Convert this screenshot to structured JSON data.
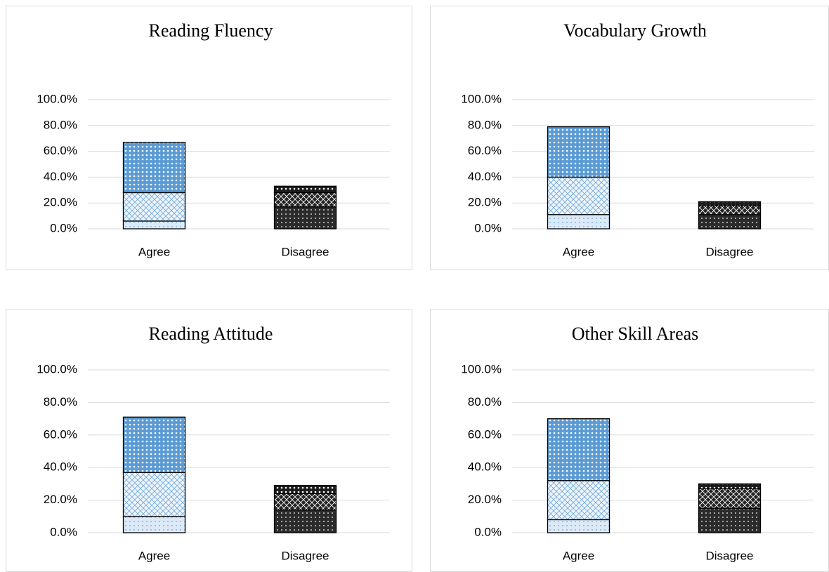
{
  "chart_data": [
    {
      "type": "bar",
      "stacked": true,
      "title": "Reading Fluency",
      "categories": [
        "Agree",
        "Disagree"
      ],
      "series": [
        {
          "colors": [
            "#dce9f7",
            "#2b2b2b"
          ],
          "values": [
            6,
            17
          ]
        },
        {
          "colors": [
            "#eef4fb",
            "#262626"
          ],
          "values": [
            22,
            11
          ]
        },
        {
          "colors": [
            "#5b9bd5",
            "#1a1a1a"
          ],
          "values": [
            39,
            5
          ]
        }
      ],
      "ylim": [
        0,
        100
      ],
      "yticks": [
        {
          "value": 0,
          "label": "0.0%"
        },
        {
          "value": 20,
          "label": "20.0%"
        },
        {
          "value": 40,
          "label": "40.0%"
        },
        {
          "value": 60,
          "label": "60.0%"
        },
        {
          "value": 80,
          "label": "80.0%"
        },
        {
          "value": 100,
          "label": "100.0%"
        }
      ],
      "grid": true
    },
    {
      "type": "bar",
      "stacked": true,
      "title": "Vocabulary Growth",
      "categories": [
        "Agree",
        "Disagree"
      ],
      "series": [
        {
          "colors": [
            "#dce9f7",
            "#2b2b2b"
          ],
          "values": [
            11,
            11
          ]
        },
        {
          "colors": [
            "#eef4fb",
            "#262626"
          ],
          "values": [
            29,
            7
          ]
        },
        {
          "colors": [
            "#5b9bd5",
            "#1a1a1a"
          ],
          "values": [
            39,
            3
          ]
        }
      ],
      "ylim": [
        0,
        100
      ],
      "yticks": [
        {
          "value": 0,
          "label": "0.0%"
        },
        {
          "value": 20,
          "label": "20.0%"
        },
        {
          "value": 40,
          "label": "40.0%"
        },
        {
          "value": 60,
          "label": "60.0%"
        },
        {
          "value": 80,
          "label": "80.0%"
        },
        {
          "value": 100,
          "label": "100.0%"
        }
      ],
      "grid": true
    },
    {
      "type": "bar",
      "stacked": true,
      "title": "Reading Attitude",
      "categories": [
        "Agree",
        "Disagree"
      ],
      "series": [
        {
          "colors": [
            "#dce9f7",
            "#2b2b2b"
          ],
          "values": [
            10,
            14
          ]
        },
        {
          "colors": [
            "#eef4fb",
            "#262626"
          ],
          "values": [
            27,
            10
          ]
        },
        {
          "colors": [
            "#5b9bd5",
            "#1a1a1a"
          ],
          "values": [
            34,
            5
          ]
        }
      ],
      "ylim": [
        0,
        100
      ],
      "yticks": [
        {
          "value": 0,
          "label": "0.0%"
        },
        {
          "value": 20,
          "label": "20.0%"
        },
        {
          "value": 40,
          "label": "40.0%"
        },
        {
          "value": 60,
          "label": "60.0%"
        },
        {
          "value": 80,
          "label": "80.0%"
        },
        {
          "value": 100,
          "label": "100.0%"
        }
      ],
      "grid": true
    },
    {
      "type": "bar",
      "stacked": true,
      "title": "Other Skill Areas",
      "categories": [
        "Agree",
        "Disagree"
      ],
      "series": [
        {
          "colors": [
            "#dce9f7",
            "#2b2b2b"
          ],
          "values": [
            8,
            15
          ]
        },
        {
          "colors": [
            "#eef4fb",
            "#262626"
          ],
          "values": [
            24,
            12
          ]
        },
        {
          "colors": [
            "#5b9bd5",
            "#1a1a1a"
          ],
          "values": [
            38,
            3
          ]
        }
      ],
      "ylim": [
        0,
        100
      ],
      "yticks": [
        {
          "value": 0,
          "label": "0.0%"
        },
        {
          "value": 20,
          "label": "20.0%"
        },
        {
          "value": 40,
          "label": "40.0%"
        },
        {
          "value": 60,
          "label": "60.0%"
        },
        {
          "value": 80,
          "label": "80.0%"
        },
        {
          "value": 100,
          "label": "100.0%"
        }
      ],
      "grid": true
    }
  ]
}
